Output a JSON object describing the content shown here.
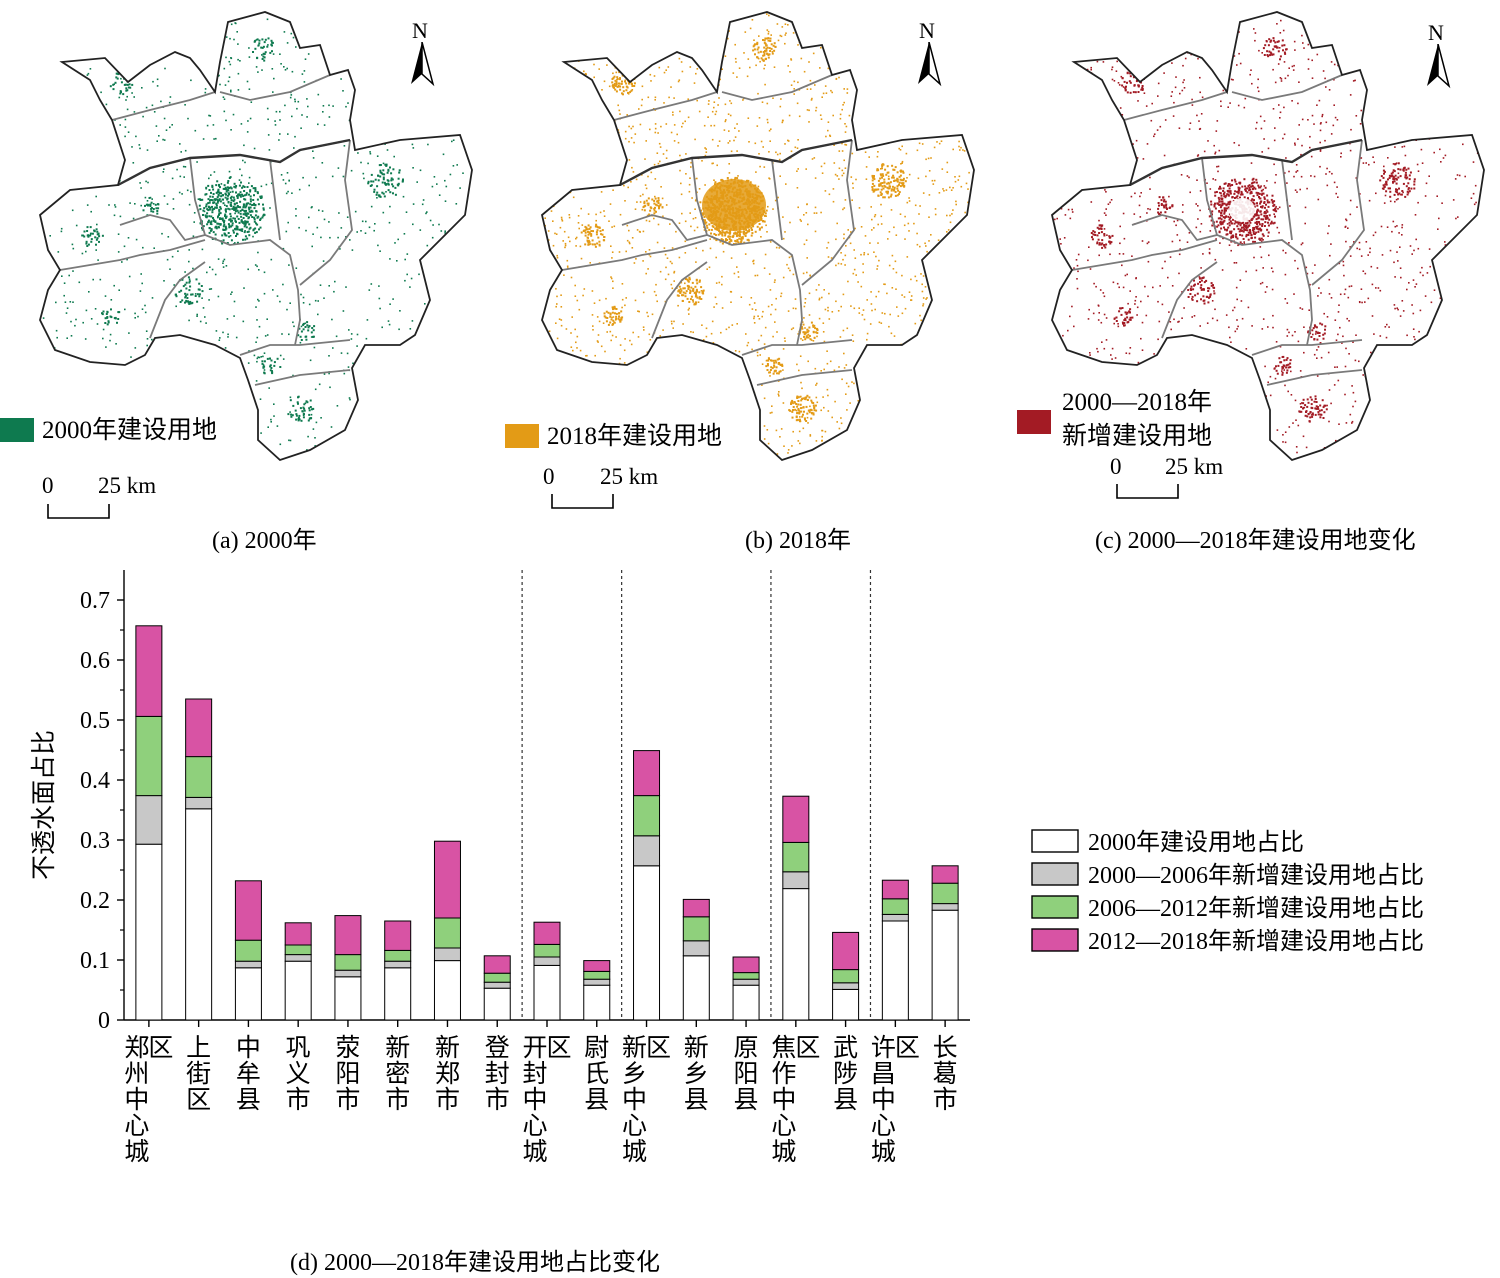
{
  "maps": [
    {
      "caption": "(a) 2000年",
      "legend_label": "2000年建设用地",
      "color": "#0e7a4f",
      "density": 0.45,
      "north": "N",
      "scale_zero": "0",
      "scale_label": "25 km"
    },
    {
      "caption": "(b) 2018年",
      "legend_label": "2018年建设用地",
      "color": "#e39b16",
      "density": 0.8,
      "north": "N",
      "scale_zero": "0",
      "scale_label": "25 km"
    },
    {
      "caption": "(c) 2000—2018年建设用地变化",
      "legend_label_line1": "2000—2018年",
      "legend_label_line2": "新增建设用地",
      "color": "#a31b24",
      "density": 0.55,
      "north": "N",
      "scale_zero": "0",
      "scale_label": "25 km"
    }
  ],
  "chart_caption": "(d) 2000—2018年建设用地占比变化",
  "chart_data": {
    "type": "bar",
    "stacked": true,
    "ylabel": "不透水面占比",
    "ylim": [
      0,
      0.75
    ],
    "yticks": [
      "0",
      "0.1",
      "0.2",
      "0.3",
      "0.4",
      "0.5",
      "0.6",
      "0.7"
    ],
    "ytick_values": [
      0,
      0.1,
      0.2,
      0.3,
      0.4,
      0.5,
      0.6,
      0.7
    ],
    "categories": [
      "郑州中心城区",
      "上街区",
      "中牟县",
      "巩义市",
      "荥阳市",
      "新密市",
      "新郑市",
      "登封市",
      "开封中心城区",
      "尉氏县",
      "新乡中心城区",
      "新乡县",
      "原阳县",
      "焦作中心城区",
      "武陟县",
      "许昌中心城区",
      "长葛市"
    ],
    "category_columns": [
      [
        "郑州中心城",
        "区"
      ],
      [
        "上街区"
      ],
      [
        "中牟县"
      ],
      [
        "巩义市"
      ],
      [
        "荥阳市"
      ],
      [
        "新密市"
      ],
      [
        "新郑市"
      ],
      [
        "登封市"
      ],
      [
        "开封中心城",
        "区"
      ],
      [
        "尉氏县"
      ],
      [
        "新乡中心城",
        "区"
      ],
      [
        "新乡县"
      ],
      [
        "原阳县"
      ],
      [
        "焦作中心城",
        "区"
      ],
      [
        "武陟县"
      ],
      [
        "许昌中心城",
        "区"
      ],
      [
        "长葛市"
      ]
    ],
    "separators_after": [
      7,
      9,
      12,
      14
    ],
    "series": [
      {
        "name": "2000年建设用地占比",
        "color": "#ffffff",
        "values": [
          0.293,
          0.352,
          0.087,
          0.098,
          0.072,
          0.087,
          0.099,
          0.053,
          0.091,
          0.058,
          0.257,
          0.107,
          0.058,
          0.219,
          0.051,
          0.165,
          0.183
        ]
      },
      {
        "name": "2000—2006年新增建设用地占比",
        "color": "#c8c8c8",
        "values": [
          0.081,
          0.019,
          0.011,
          0.011,
          0.011,
          0.011,
          0.021,
          0.01,
          0.014,
          0.01,
          0.05,
          0.025,
          0.01,
          0.028,
          0.011,
          0.011,
          0.011
        ]
      },
      {
        "name": "2006—2012年新增建设用地占比",
        "color": "#8fd07c",
        "values": [
          0.132,
          0.068,
          0.035,
          0.016,
          0.026,
          0.018,
          0.05,
          0.015,
          0.021,
          0.013,
          0.067,
          0.04,
          0.011,
          0.049,
          0.022,
          0.026,
          0.034
        ]
      },
      {
        "name": "2012—2018年新增建设用地占比",
        "color": "#d853a4",
        "values": [
          0.151,
          0.096,
          0.099,
          0.037,
          0.065,
          0.049,
          0.128,
          0.029,
          0.037,
          0.018,
          0.075,
          0.029,
          0.026,
          0.077,
          0.062,
          0.031,
          0.029
        ]
      }
    ],
    "legend_position": "right"
  }
}
